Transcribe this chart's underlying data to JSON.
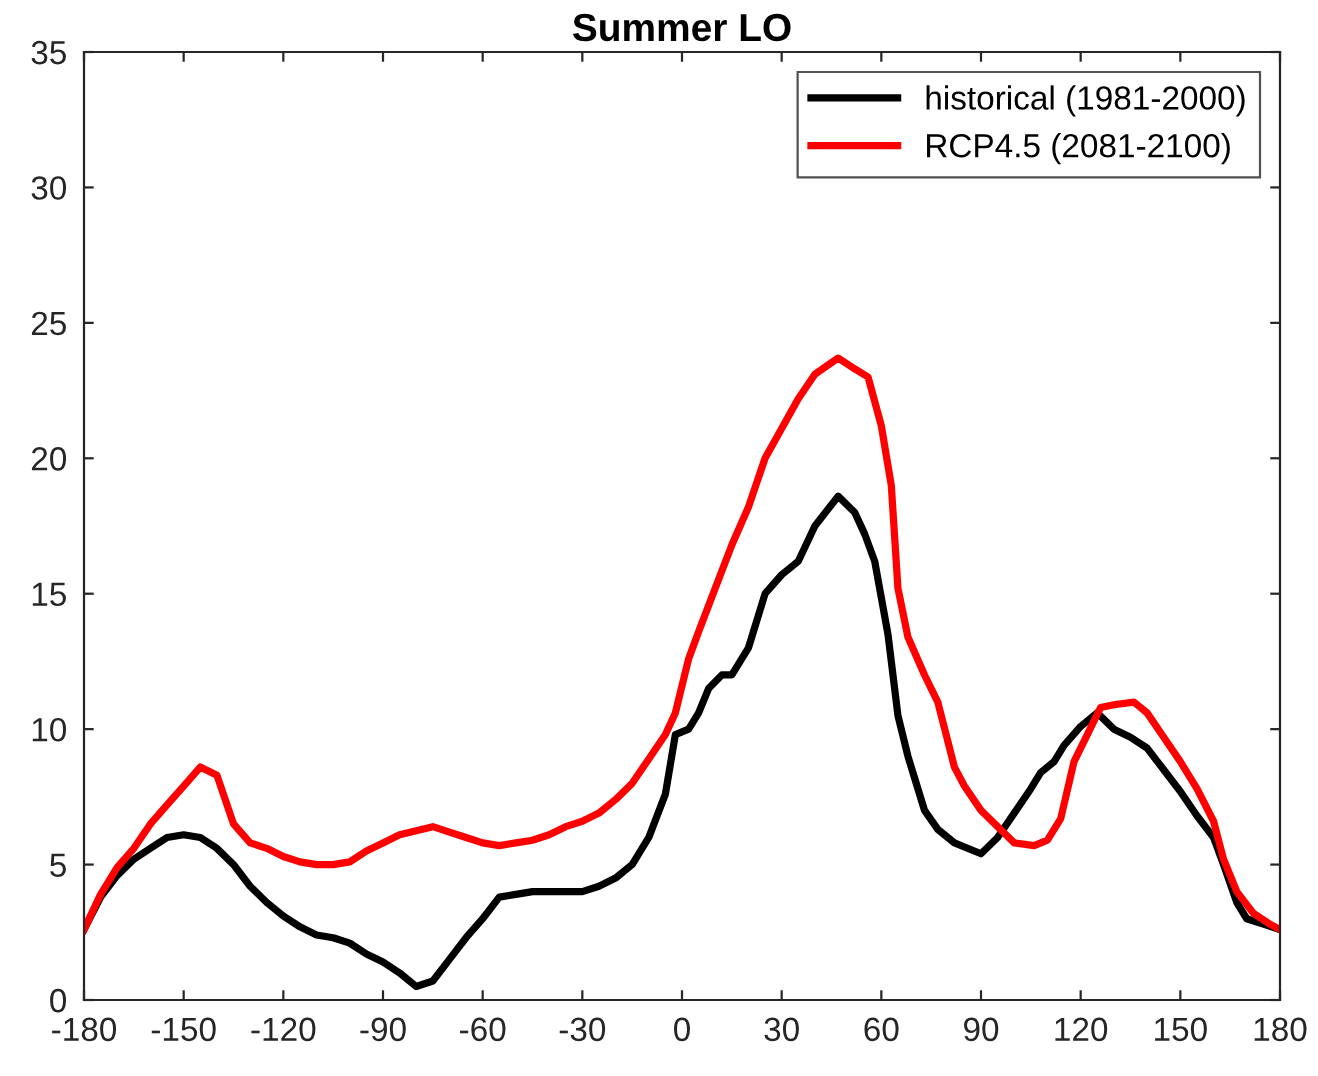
{
  "chart_data": {
    "type": "line",
    "title": "Summer LO",
    "xlim": [
      -180,
      180
    ],
    "xticks": [
      -180,
      -150,
      -120,
      -90,
      -60,
      -30,
      0,
      30,
      60,
      90,
      120,
      150,
      180
    ],
    "ylim": [
      0,
      35
    ],
    "yticks": [
      0,
      5,
      10,
      15,
      20,
      25,
      30,
      35
    ],
    "grid": false,
    "legend": "top right",
    "line_style": "solid",
    "marker": "none",
    "series": [
      {
        "name": "historical (1981-2000)",
        "color": "#000000",
        "x": [
          -180,
          -175,
          -170,
          -165,
          -160,
          -155,
          -150,
          -145,
          -140,
          -135,
          -130,
          -125,
          -120,
          -115,
          -110,
          -105,
          -100,
          -95,
          -90,
          -85,
          -80,
          -75,
          -70,
          -65,
          -60,
          -55,
          -50,
          -45,
          -40,
          -35,
          -30,
          -25,
          -20,
          -15,
          -10,
          -5,
          -2,
          2,
          5,
          8,
          12,
          15,
          20,
          25,
          30,
          35,
          40,
          47,
          52,
          55,
          58,
          62,
          65,
          68,
          70,
          73,
          77,
          82,
          90,
          95,
          100,
          105,
          108,
          112,
          115,
          120,
          125,
          130,
          135,
          140,
          145,
          150,
          155,
          160,
          163,
          167,
          170,
          175,
          180
        ],
        "values": [
          2.6,
          3.8,
          4.6,
          5.2,
          5.6,
          6.0,
          6.1,
          6.0,
          5.6,
          5.0,
          4.2,
          3.6,
          3.1,
          2.7,
          2.4,
          2.3,
          2.1,
          1.7,
          1.4,
          1.0,
          0.5,
          0.7,
          1.5,
          2.3,
          3.0,
          3.8,
          3.9,
          4.0,
          4.0,
          4.0,
          4.0,
          4.2,
          4.5,
          5.0,
          6.0,
          7.6,
          9.8,
          10.0,
          10.6,
          11.5,
          12.0,
          12.0,
          13.0,
          15.0,
          15.7,
          16.2,
          17.5,
          18.6,
          18.0,
          17.2,
          16.2,
          13.5,
          10.5,
          9.0,
          8.2,
          7.0,
          6.3,
          5.8,
          5.4,
          6.0,
          6.9,
          7.8,
          8.4,
          8.8,
          9.4,
          10.1,
          10.6,
          10.0,
          9.7,
          9.3,
          8.5,
          7.7,
          6.8,
          6.0,
          5.0,
          3.6,
          3.0,
          2.8,
          2.6
        ]
      },
      {
        "name": "RCP4.5 (2081-2100)",
        "color": "#ff0000",
        "x": [
          -180,
          -175,
          -170,
          -165,
          -160,
          -155,
          -150,
          -145,
          -140,
          -135,
          -130,
          -125,
          -120,
          -115,
          -110,
          -105,
          -100,
          -95,
          -90,
          -85,
          -75,
          -70,
          -65,
          -60,
          -55,
          -50,
          -45,
          -40,
          -35,
          -30,
          -25,
          -20,
          -15,
          -10,
          -5,
          -2,
          2,
          5,
          10,
          15,
          20,
          25,
          30,
          35,
          40,
          47,
          52,
          56,
          60,
          63,
          65,
          68,
          73,
          77,
          82,
          85,
          90,
          95,
          100,
          106,
          110,
          114,
          118,
          122,
          126,
          130,
          136,
          140,
          145,
          150,
          155,
          160,
          163,
          167,
          172,
          177,
          180
        ],
        "values": [
          2.6,
          3.9,
          4.9,
          5.6,
          6.5,
          7.2,
          7.9,
          8.6,
          8.3,
          6.5,
          5.8,
          5.6,
          5.3,
          5.1,
          5.0,
          5.0,
          5.1,
          5.5,
          5.8,
          6.1,
          6.4,
          6.2,
          6.0,
          5.8,
          5.7,
          5.8,
          5.9,
          6.1,
          6.4,
          6.6,
          6.9,
          7.4,
          8.0,
          8.9,
          9.8,
          10.6,
          12.6,
          13.6,
          15.2,
          16.8,
          18.2,
          20.0,
          21.1,
          22.2,
          23.1,
          23.7,
          23.3,
          23.0,
          21.2,
          19.0,
          15.2,
          13.4,
          12.0,
          11.0,
          8.6,
          7.9,
          7.0,
          6.4,
          5.8,
          5.7,
          5.9,
          6.7,
          8.8,
          9.8,
          10.8,
          10.9,
          11.0,
          10.6,
          9.7,
          8.8,
          7.8,
          6.6,
          5.2,
          4.0,
          3.2,
          2.8,
          2.6
        ]
      }
    ]
  }
}
